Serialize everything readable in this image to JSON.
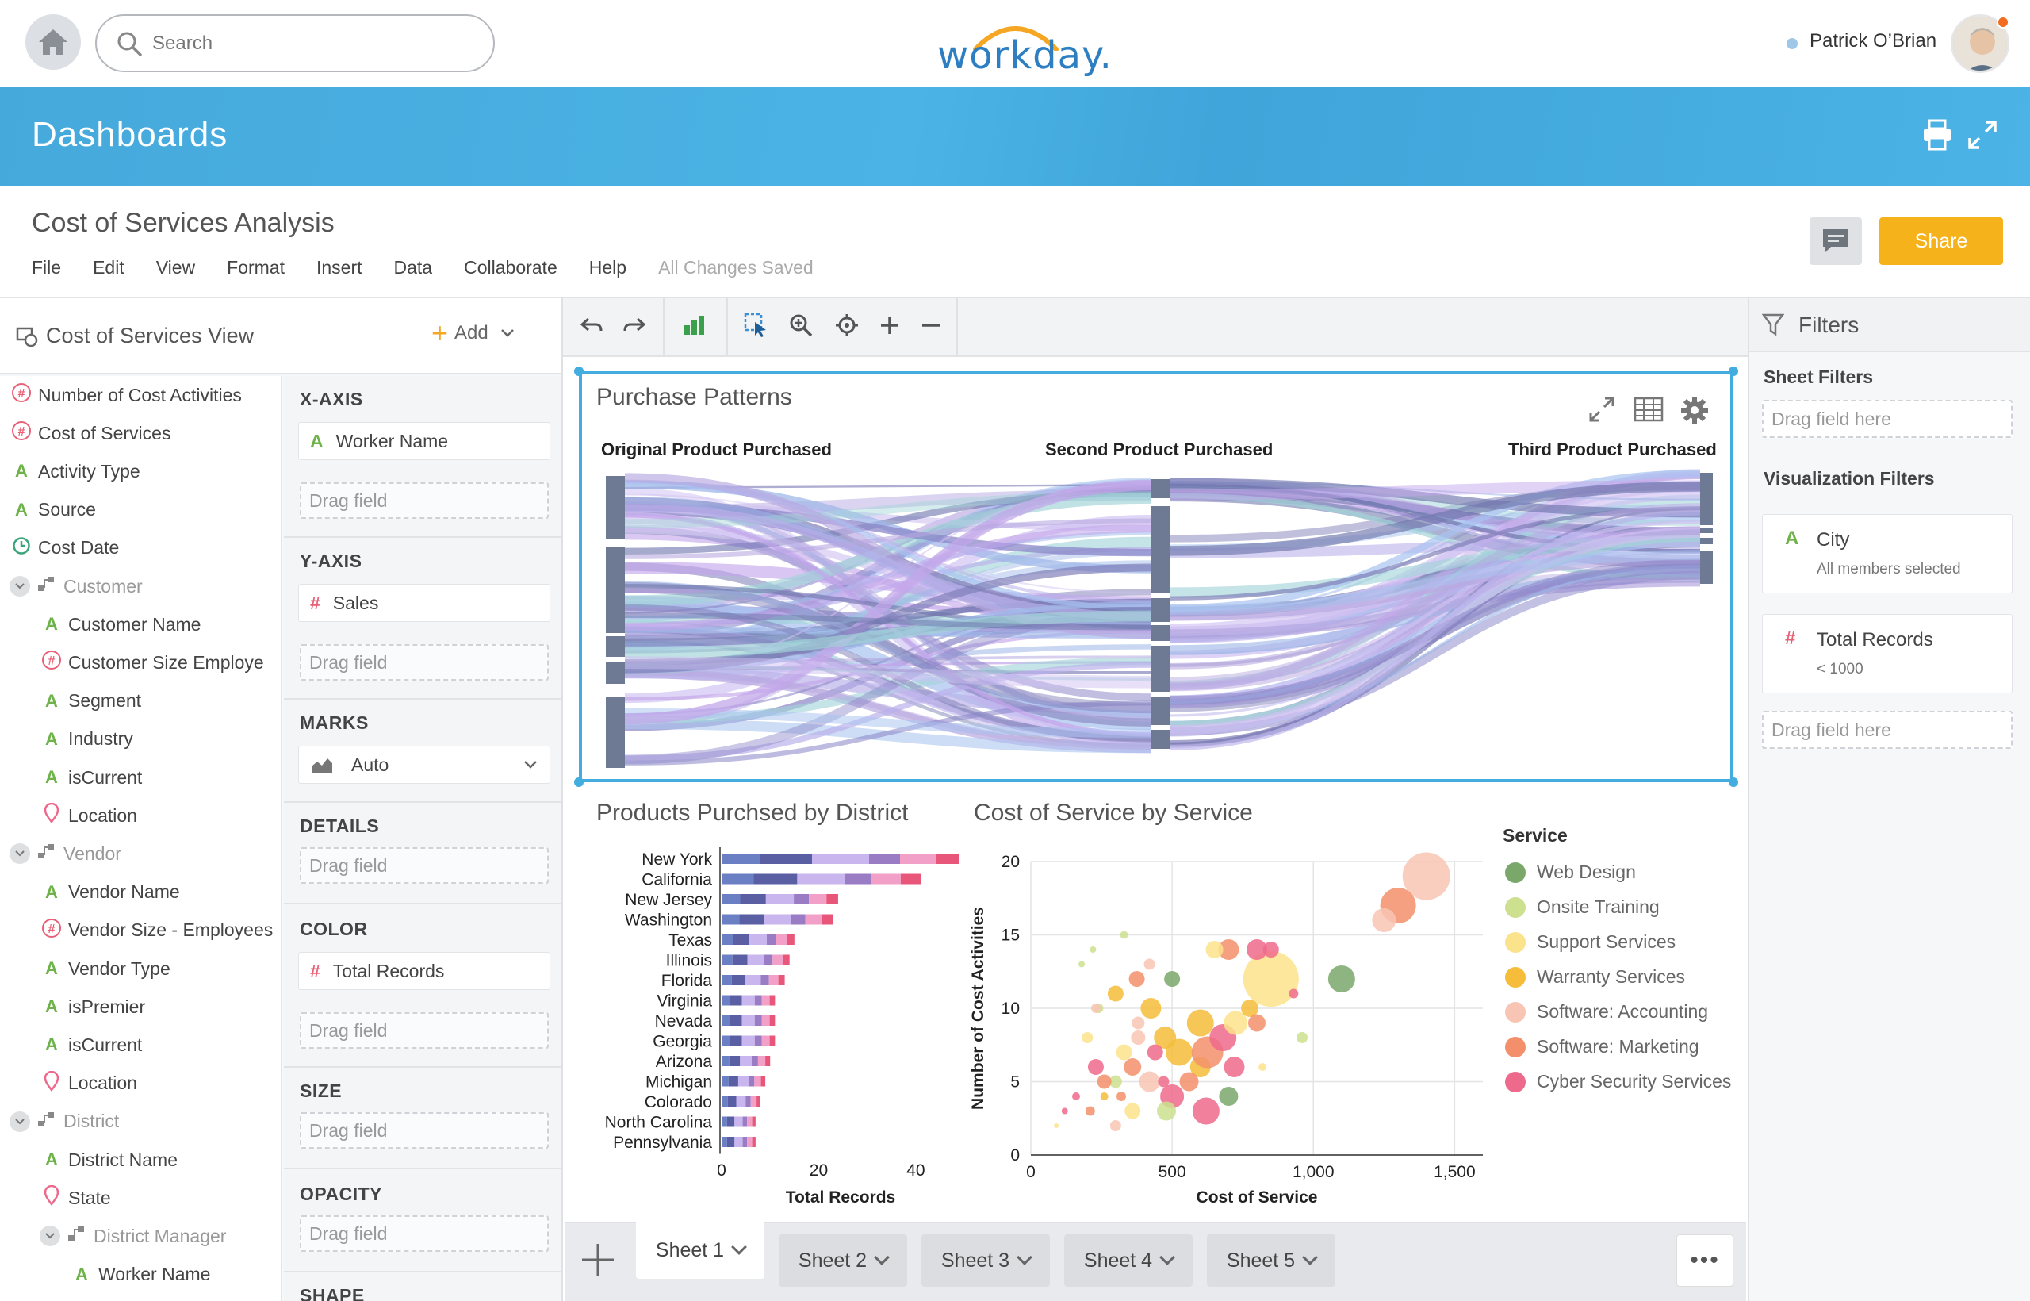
{
  "header": {
    "search_placeholder": "Search",
    "logo": "workday.",
    "user_name": "Patrick O’Brian"
  },
  "banner": {
    "title": "Dashboards"
  },
  "document": {
    "title": "Cost of Services Analysis",
    "menu": [
      "File",
      "Edit",
      "View",
      "Format",
      "Insert",
      "Data",
      "Collaborate",
      "Help"
    ],
    "status": "All Changes Saved",
    "share_label": "Share"
  },
  "view_panel": {
    "title": "Cost of Services View",
    "add_label": "Add",
    "fields": [
      {
        "type": "measure",
        "label": "Number of Cost Activities",
        "indent": 0
      },
      {
        "type": "measure",
        "label": "Cost of Services",
        "indent": 0
      },
      {
        "type": "text",
        "label": "Activity Type",
        "indent": 0
      },
      {
        "type": "text",
        "label": "Source",
        "indent": 0
      },
      {
        "type": "date",
        "label": "Cost Date",
        "indent": 0
      },
      {
        "type": "group",
        "label": "Customer",
        "indent": 0
      },
      {
        "type": "text",
        "label": "Customer Name",
        "indent": 1
      },
      {
        "type": "measure",
        "label": "Customer Size Employe",
        "indent": 1
      },
      {
        "type": "text",
        "label": "Segment",
        "indent": 1
      },
      {
        "type": "text",
        "label": "Industry",
        "indent": 1
      },
      {
        "type": "text",
        "label": "isCurrent",
        "indent": 1
      },
      {
        "type": "location",
        "label": "Location",
        "indent": 1
      },
      {
        "type": "group",
        "label": "Vendor",
        "indent": 0
      },
      {
        "type": "text",
        "label": "Vendor Name",
        "indent": 1
      },
      {
        "type": "measure",
        "label": "Vendor Size - Employees",
        "indent": 1
      },
      {
        "type": "text",
        "label": "Vendor Type",
        "indent": 1
      },
      {
        "type": "text",
        "label": "isPremier",
        "indent": 1
      },
      {
        "type": "text",
        "label": "isCurrent",
        "indent": 1
      },
      {
        "type": "location",
        "label": "Location",
        "indent": 1
      },
      {
        "type": "group",
        "label": "District",
        "indent": 0
      },
      {
        "type": "text",
        "label": "District Name",
        "indent": 1
      },
      {
        "type": "location",
        "label": "State",
        "indent": 1
      },
      {
        "type": "group",
        "label": "District Manager",
        "indent": 1
      },
      {
        "type": "text",
        "label": "Worker Name",
        "indent": 2
      }
    ]
  },
  "shelves": {
    "x_axis": {
      "head": "X-AXIS",
      "pill": "Worker Name"
    },
    "y_axis": {
      "head": "Y-AXIS",
      "pill": "Sales"
    },
    "marks": {
      "head": "MARKS",
      "value": "Auto"
    },
    "details": {
      "head": "DETAILS"
    },
    "color": {
      "head": "COLOR",
      "pill": "Total Records"
    },
    "size": {
      "head": "SIZE"
    },
    "opacity": {
      "head": "OPACITY"
    },
    "shape": {
      "head": "SHAPE"
    },
    "drag_label": "Drag field"
  },
  "sankey": {
    "title": "Purchase Patterns",
    "headers": [
      "Original Product Purchased",
      "Second Product Purchased",
      "Third Product Purchased"
    ]
  },
  "filters": {
    "title": "Filters",
    "sheet_filters": "Sheet Filters",
    "viz_filters": "Visualization Filters",
    "drag_label": "Drag field here",
    "cards": [
      {
        "icon": "A",
        "title": "City",
        "subtitle": "All members selected"
      },
      {
        "icon": "#",
        "title": "Total Records",
        "subtitle": "< 1000"
      }
    ]
  },
  "sheets": {
    "tabs": [
      "Sheet 1",
      "Sheet 2",
      "Sheet 3",
      "Sheet 4",
      "Sheet 5"
    ],
    "more": "•••"
  },
  "chart_data": [
    {
      "type": "bar",
      "title": "Products Purchsed by District",
      "xlabel": "Total Records",
      "ylabel": "",
      "orientation": "horizontal",
      "stacked": true,
      "categories": [
        "New York",
        "California",
        "New Jersey",
        "Washington",
        "Texas",
        "Illinois",
        "Florida",
        "Virginia",
        "Nevada",
        "Georgia",
        "Arizona",
        "Michigan",
        "Colorado",
        "North Carolina",
        "Pennsylvania"
      ],
      "totals": [
        49,
        41,
        24,
        23,
        15,
        14,
        13,
        11,
        11,
        11,
        10,
        9,
        8,
        7,
        7
      ],
      "xlim": [
        0,
        49
      ],
      "xticks": [
        0,
        20,
        40
      ],
      "segment_colors": [
        "#6b7fc4",
        "#5a5fa3",
        "#c9b6ee",
        "#9a7cc4",
        "#f2a0c8",
        "#e8577a"
      ]
    },
    {
      "type": "scatter",
      "title": "Cost of Service by Service",
      "xlabel": "Cost of Service",
      "ylabel": "Number of Cost Activities",
      "xlim": [
        0,
        1600
      ],
      "ylim": [
        0,
        20
      ],
      "xticks": [
        0,
        500,
        1000,
        1500
      ],
      "xtick_labels": [
        "0",
        "500",
        "1,000",
        "1,500"
      ],
      "yticks": [
        0,
        5,
        10,
        15,
        20
      ],
      "legend_title": "Service",
      "legend_position": "right",
      "series": [
        {
          "name": "Web Design",
          "color": "#7aa86b"
        },
        {
          "name": "Onsite Training",
          "color": "#cde08f"
        },
        {
          "name": "Support Services",
          "color": "#fbe38b"
        },
        {
          "name": "Warranty Services",
          "color": "#f5bd3a"
        },
        {
          "name": "Software: Accounting",
          "color": "#f8c5b4"
        },
        {
          "name": "Software: Marketing",
          "color": "#f3906b"
        },
        {
          "name": "Cyber Security Services",
          "color": "#ee6a8c"
        }
      ],
      "points": [
        [
          1400,
          19,
          4,
          60
        ],
        [
          1300,
          17,
          5,
          45
        ],
        [
          1250,
          16,
          4,
          30
        ],
        [
          1100,
          12,
          0,
          34
        ],
        [
          850,
          12,
          2,
          70
        ],
        [
          800,
          14,
          6,
          26
        ],
        [
          700,
          14,
          5,
          26
        ],
        [
          850,
          14,
          6,
          20
        ],
        [
          650,
          14,
          2,
          22
        ],
        [
          500,
          12,
          0,
          20
        ],
        [
          375,
          12,
          5,
          20
        ],
        [
          300,
          11,
          3,
          20
        ],
        [
          425,
          10,
          3,
          26
        ],
        [
          475,
          8,
          3,
          28
        ],
        [
          525,
          7,
          3,
          34
        ],
        [
          600,
          6,
          3,
          26
        ],
        [
          625,
          7,
          5,
          40
        ],
        [
          680,
          8,
          6,
          34
        ],
        [
          725,
          9,
          2,
          30
        ],
        [
          775,
          10,
          3,
          22
        ],
        [
          800,
          9,
          5,
          22
        ],
        [
          720,
          6,
          6,
          26
        ],
        [
          560,
          5,
          5,
          24
        ],
        [
          500,
          4,
          6,
          30
        ],
        [
          420,
          5,
          4,
          26
        ],
        [
          360,
          6,
          5,
          22
        ],
        [
          330,
          7,
          2,
          20
        ],
        [
          300,
          5,
          1,
          16
        ],
        [
          260,
          5,
          5,
          18
        ],
        [
          230,
          6,
          6,
          20
        ],
        [
          200,
          8,
          2,
          14
        ],
        [
          240,
          10,
          1,
          12
        ],
        [
          440,
          7,
          6,
          20
        ],
        [
          380,
          8,
          4,
          18
        ],
        [
          620,
          3,
          6,
          34
        ],
        [
          480,
          3,
          1,
          24
        ],
        [
          360,
          3,
          2,
          20
        ],
        [
          300,
          2,
          4,
          14
        ],
        [
          210,
          3,
          5,
          12
        ],
        [
          160,
          4,
          6,
          10
        ],
        [
          600,
          9,
          3,
          34
        ],
        [
          700,
          4,
          0,
          24
        ],
        [
          420,
          13,
          4,
          14
        ],
        [
          330,
          15,
          1,
          10
        ],
        [
          180,
          13,
          1,
          8
        ],
        [
          220,
          14,
          1,
          8
        ],
        [
          120,
          3,
          6,
          8
        ],
        [
          90,
          2,
          2,
          6
        ],
        [
          230,
          10,
          4,
          12
        ],
        [
          380,
          9,
          4,
          16
        ],
        [
          960,
          8,
          1,
          14
        ],
        [
          820,
          6,
          2,
          10
        ],
        [
          930,
          11,
          6,
          12
        ],
        [
          260,
          4,
          3,
          10
        ],
        [
          320,
          4,
          5,
          12
        ],
        [
          470,
          5,
          6,
          14
        ]
      ]
    }
  ]
}
